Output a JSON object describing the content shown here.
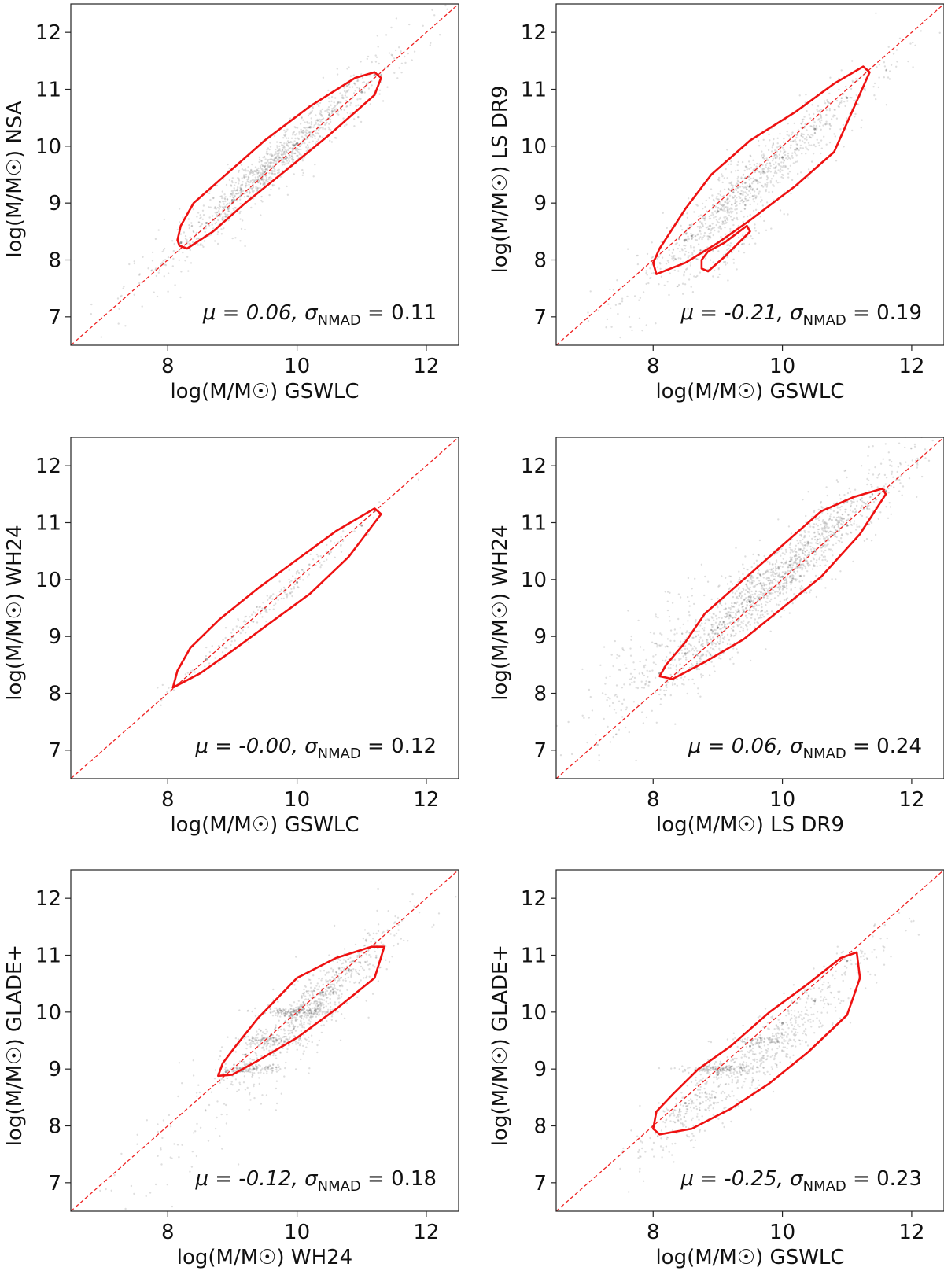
{
  "chart_data": [
    {
      "type": "scatter",
      "x": [
        8.2,
        8.6,
        9.0,
        9.5,
        10.0,
        10.5,
        11.0,
        11.2
      ],
      "y": [
        8.3,
        8.65,
        9.05,
        9.55,
        10.05,
        10.55,
        10.95,
        11.25
      ],
      "annotation": {
        "mu": "μ = 0.06,",
        "sigma_sym": "σ",
        "sigma_sub": "NMAD",
        "sigma_val": "= 0.11"
      },
      "xlabel": "log(M/M☉) GSWLC",
      "ylabel": "log(M/M☉) NSA",
      "xlim": [
        6.5,
        12.5
      ],
      "ylim": [
        6.5,
        12.5
      ],
      "xticks": [
        "8",
        "10",
        "12"
      ],
      "yticks": [
        "7",
        "8",
        "9",
        "10",
        "11",
        "12"
      ],
      "contour": [
        [
          8.18,
          8.25
        ],
        [
          8.3,
          8.2
        ],
        [
          8.7,
          8.5
        ],
        [
          9.2,
          9.0
        ],
        [
          9.8,
          9.55
        ],
        [
          10.5,
          10.2
        ],
        [
          11.2,
          10.9
        ],
        [
          11.3,
          11.2
        ],
        [
          11.2,
          11.3
        ],
        [
          10.9,
          11.2
        ],
        [
          10.2,
          10.7
        ],
        [
          9.5,
          10.1
        ],
        [
          8.8,
          9.4
        ],
        [
          8.4,
          9.0
        ],
        [
          8.2,
          8.6
        ],
        [
          8.15,
          8.35
        ]
      ],
      "contour2": null,
      "cloud": [
        {
          "x": 9.6,
          "y": 9.65,
          "sx": 0.8,
          "sy": 0.16,
          "rho": 1.0,
          "n": 700,
          "slope": 1.0
        },
        {
          "x": 9.7,
          "y": 9.75,
          "sx": 1.1,
          "sy": 0.32,
          "rho": 1.0,
          "n": 400,
          "slope": 1.0
        }
      ]
    },
    {
      "type": "scatter",
      "x": [
        8.0,
        8.5,
        9.0,
        9.5,
        10.0,
        10.5,
        11.0,
        11.3
      ],
      "y": [
        7.95,
        8.35,
        8.85,
        9.3,
        9.8,
        10.3,
        10.85,
        11.35
      ],
      "annotation": {
        "mu": "μ = -0.21,",
        "sigma_sym": "σ",
        "sigma_sub": "NMAD",
        "sigma_val": "= 0.19"
      },
      "xlabel": "log(M/M☉) GSWLC",
      "ylabel": "log(M/M☉) LS DR9",
      "xlim": [
        6.5,
        12.5
      ],
      "ylim": [
        6.5,
        12.5
      ],
      "xticks": [
        "8",
        "10",
        "12"
      ],
      "yticks": [
        "7",
        "8",
        "9",
        "10",
        "11",
        "12"
      ],
      "contour": [
        [
          8.0,
          7.95
        ],
        [
          8.05,
          7.75
        ],
        [
          8.5,
          7.95
        ],
        [
          9.0,
          8.3
        ],
        [
          9.5,
          8.7
        ],
        [
          10.2,
          9.3
        ],
        [
          10.8,
          9.9
        ],
        [
          11.35,
          11.3
        ],
        [
          11.25,
          11.4
        ],
        [
          10.8,
          11.1
        ],
        [
          10.2,
          10.6
        ],
        [
          9.5,
          10.1
        ],
        [
          8.9,
          9.5
        ],
        [
          8.5,
          8.9
        ],
        [
          8.1,
          8.2
        ]
      ],
      "contour2": [
        [
          8.75,
          7.85
        ],
        [
          8.85,
          7.8
        ],
        [
          9.1,
          8.05
        ],
        [
          9.5,
          8.5
        ],
        [
          9.45,
          8.6
        ],
        [
          9.1,
          8.3
        ],
        [
          8.85,
          8.15
        ],
        [
          8.75,
          8.0
        ]
      ],
      "cloud": [
        {
          "x": 9.4,
          "y": 9.2,
          "sx": 0.8,
          "sy": 0.22,
          "rho": 1.0,
          "n": 600,
          "slope": 1.0
        },
        {
          "x": 9.7,
          "y": 9.5,
          "sx": 1.1,
          "sy": 0.4,
          "rho": 1.0,
          "n": 400,
          "slope": 1.0
        },
        {
          "x": 9.1,
          "y": 8.1,
          "sx": 0.35,
          "sy": 0.2,
          "rho": 1.0,
          "n": 80,
          "slope": 0.8
        }
      ]
    },
    {
      "type": "scatter",
      "x": [
        8.1,
        8.6,
        9.0,
        9.5,
        10.0,
        10.5,
        11.0,
        11.2
      ],
      "y": [
        8.15,
        8.6,
        9.0,
        9.5,
        9.95,
        10.45,
        10.95,
        11.2
      ],
      "annotation": {
        "mu": "μ = -0.00,",
        "sigma_sym": "σ",
        "sigma_sub": "NMAD",
        "sigma_val": "= 0.12"
      },
      "xlabel": "log(M/M☉) GSWLC",
      "ylabel": "log(M/M☉) WH24",
      "xlim": [
        6.5,
        12.5
      ],
      "ylim": [
        6.5,
        12.5
      ],
      "xticks": [
        "8",
        "10",
        "12"
      ],
      "yticks": [
        "7",
        "8",
        "9",
        "10",
        "11",
        "12"
      ],
      "contour": [
        [
          8.08,
          8.1
        ],
        [
          8.5,
          8.35
        ],
        [
          9.0,
          8.75
        ],
        [
          9.6,
          9.25
        ],
        [
          10.2,
          9.75
        ],
        [
          10.8,
          10.4
        ],
        [
          11.3,
          11.15
        ],
        [
          11.2,
          11.25
        ],
        [
          10.6,
          10.85
        ],
        [
          10.0,
          10.35
        ],
        [
          9.4,
          9.85
        ],
        [
          8.8,
          9.3
        ],
        [
          8.35,
          8.8
        ],
        [
          8.15,
          8.4
        ]
      ],
      "contour2": null,
      "cloud": [
        {
          "x": 9.4,
          "y": 9.4,
          "sx": 0.75,
          "sy": 0.12,
          "rho": 1.0,
          "n": 180,
          "slope": 1.0
        }
      ]
    },
    {
      "type": "scatter",
      "x": [
        8.1,
        8.5,
        9.0,
        9.5,
        10.0,
        10.5,
        11.0,
        11.6
      ],
      "y": [
        8.35,
        8.7,
        9.15,
        9.6,
        10.05,
        10.5,
        10.95,
        11.55
      ],
      "annotation": {
        "mu": "μ = 0.06,",
        "sigma_sym": "σ",
        "sigma_sub": "NMAD",
        "sigma_val": "= 0.24"
      },
      "xlabel": "log(M/M☉) LS DR9",
      "ylabel": "log(M/M☉) WH24",
      "xlim": [
        6.5,
        12.5
      ],
      "ylim": [
        6.5,
        12.5
      ],
      "xticks": [
        "8",
        "10",
        "12"
      ],
      "yticks": [
        "7",
        "8",
        "9",
        "10",
        "11",
        "12"
      ],
      "contour": [
        [
          8.1,
          8.3
        ],
        [
          8.3,
          8.25
        ],
        [
          8.8,
          8.55
        ],
        [
          9.4,
          8.95
        ],
        [
          10.0,
          9.5
        ],
        [
          10.6,
          10.05
        ],
        [
          11.2,
          10.8
        ],
        [
          11.6,
          11.5
        ],
        [
          11.55,
          11.6
        ],
        [
          11.1,
          11.45
        ],
        [
          10.6,
          11.2
        ],
        [
          10.0,
          10.6
        ],
        [
          9.4,
          10.0
        ],
        [
          8.8,
          9.4
        ],
        [
          8.5,
          8.9
        ],
        [
          8.2,
          8.5
        ]
      ],
      "contour2": null,
      "cloud": [
        {
          "x": 9.9,
          "y": 10.0,
          "sx": 0.85,
          "sy": 0.24,
          "rho": 1.0,
          "n": 900,
          "slope": 1.0
        },
        {
          "x": 10.2,
          "y": 10.3,
          "sx": 1.1,
          "sy": 0.38,
          "rho": 1.0,
          "n": 500,
          "slope": 1.0
        },
        {
          "x": 8.2,
          "y": 8.8,
          "sx": 0.7,
          "sy": 0.5,
          "rho": 1.0,
          "n": 250,
          "slope": 0.9
        }
      ]
    },
    {
      "type": "scatter",
      "x": [
        8.9,
        9.2,
        9.6,
        10.0,
        10.4,
        10.8,
        11.2
      ],
      "y": [
        8.95,
        9.25,
        9.6,
        9.95,
        10.35,
        10.75,
        11.15
      ],
      "annotation": {
        "mu": "μ = -0.12,",
        "sigma_sym": "σ",
        "sigma_sub": "NMAD",
        "sigma_val": "= 0.18"
      },
      "xlabel": "log(M/M☉) WH24",
      "ylabel": "log(M/M☉) GLADE+",
      "xlim": [
        6.5,
        12.5
      ],
      "ylim": [
        6.5,
        12.5
      ],
      "xticks": [
        "8",
        "10",
        "12"
      ],
      "yticks": [
        "7",
        "8",
        "9",
        "10",
        "11",
        "12"
      ],
      "contour": [
        [
          8.78,
          8.88
        ],
        [
          9.0,
          8.9
        ],
        [
          9.4,
          9.15
        ],
        [
          10.0,
          9.55
        ],
        [
          10.6,
          10.05
        ],
        [
          11.2,
          10.6
        ],
        [
          11.35,
          11.15
        ],
        [
          11.15,
          11.15
        ],
        [
          10.6,
          10.95
        ],
        [
          10.0,
          10.6
        ],
        [
          9.4,
          9.9
        ],
        [
          9.05,
          9.4
        ],
        [
          8.85,
          9.1
        ]
      ],
      "contour2": null,
      "cloud": [
        {
          "x": 10.3,
          "y": 10.2,
          "sx": 0.6,
          "sy": 0.22,
          "rho": 1.0,
          "n": 600,
          "slope": 1.0
        },
        {
          "x": 9.3,
          "y": 9.0,
          "sx": 0.25,
          "sy": 0.04,
          "rho": 1.0,
          "n": 120,
          "slope": 0.0
        },
        {
          "x": 10.0,
          "y": 10.0,
          "sx": 0.3,
          "sy": 0.04,
          "rho": 1.0,
          "n": 160,
          "slope": 0.0
        },
        {
          "x": 9.6,
          "y": 9.5,
          "sx": 0.3,
          "sy": 0.04,
          "rho": 1.0,
          "n": 120,
          "slope": 0.0
        },
        {
          "x": 9.5,
          "y": 9.2,
          "sx": 1.2,
          "sy": 0.5,
          "rho": 1.0,
          "n": 200,
          "slope": 1.0
        }
      ]
    },
    {
      "type": "scatter",
      "x": [
        8.0,
        8.5,
        9.0,
        9.5,
        10.0,
        10.5,
        11.0
      ],
      "y": [
        8.0,
        8.4,
        8.9,
        9.4,
        9.8,
        10.2,
        10.9
      ],
      "annotation": {
        "mu": "μ = -0.25,",
        "sigma_sym": "σ",
        "sigma_sub": "NMAD",
        "sigma_val": "= 0.23"
      },
      "xlabel": "log(M/M☉) GSWLC",
      "ylabel": "log(M/M☉) GLADE+",
      "xlim": [
        6.5,
        12.5
      ],
      "ylim": [
        6.5,
        12.5
      ],
      "xticks": [
        "8",
        "10",
        "12"
      ],
      "yticks": [
        "7",
        "8",
        "9",
        "10",
        "11",
        "12"
      ],
      "contour": [
        [
          8.0,
          7.95
        ],
        [
          8.1,
          7.85
        ],
        [
          8.6,
          7.95
        ],
        [
          9.2,
          8.3
        ],
        [
          9.8,
          8.75
        ],
        [
          10.4,
          9.3
        ],
        [
          11.0,
          9.95
        ],
        [
          11.2,
          10.6
        ],
        [
          11.15,
          11.05
        ],
        [
          10.9,
          10.95
        ],
        [
          10.4,
          10.5
        ],
        [
          9.8,
          10.0
        ],
        [
          9.2,
          9.4
        ],
        [
          8.7,
          9.0
        ],
        [
          8.3,
          8.55
        ],
        [
          8.05,
          8.25
        ]
      ],
      "contour2": null,
      "cloud": [
        {
          "x": 9.8,
          "y": 9.4,
          "sx": 0.85,
          "sy": 0.3,
          "rho": 1.0,
          "n": 550,
          "slope": 1.0
        },
        {
          "x": 9.0,
          "y": 9.0,
          "sx": 0.3,
          "sy": 0.04,
          "rho": 1.0,
          "n": 160,
          "slope": 0.0
        },
        {
          "x": 9.7,
          "y": 9.5,
          "sx": 0.3,
          "sy": 0.04,
          "rho": 1.0,
          "n": 80,
          "slope": 0.0
        },
        {
          "x": 8.5,
          "y": 8.3,
          "sx": 0.4,
          "sy": 0.2,
          "rho": 1.0,
          "n": 150,
          "slope": 1.0
        }
      ]
    }
  ],
  "colors": {
    "contour": "#ee1111",
    "identity": "#ee2222",
    "points": "#000000",
    "axis": "#222222"
  }
}
